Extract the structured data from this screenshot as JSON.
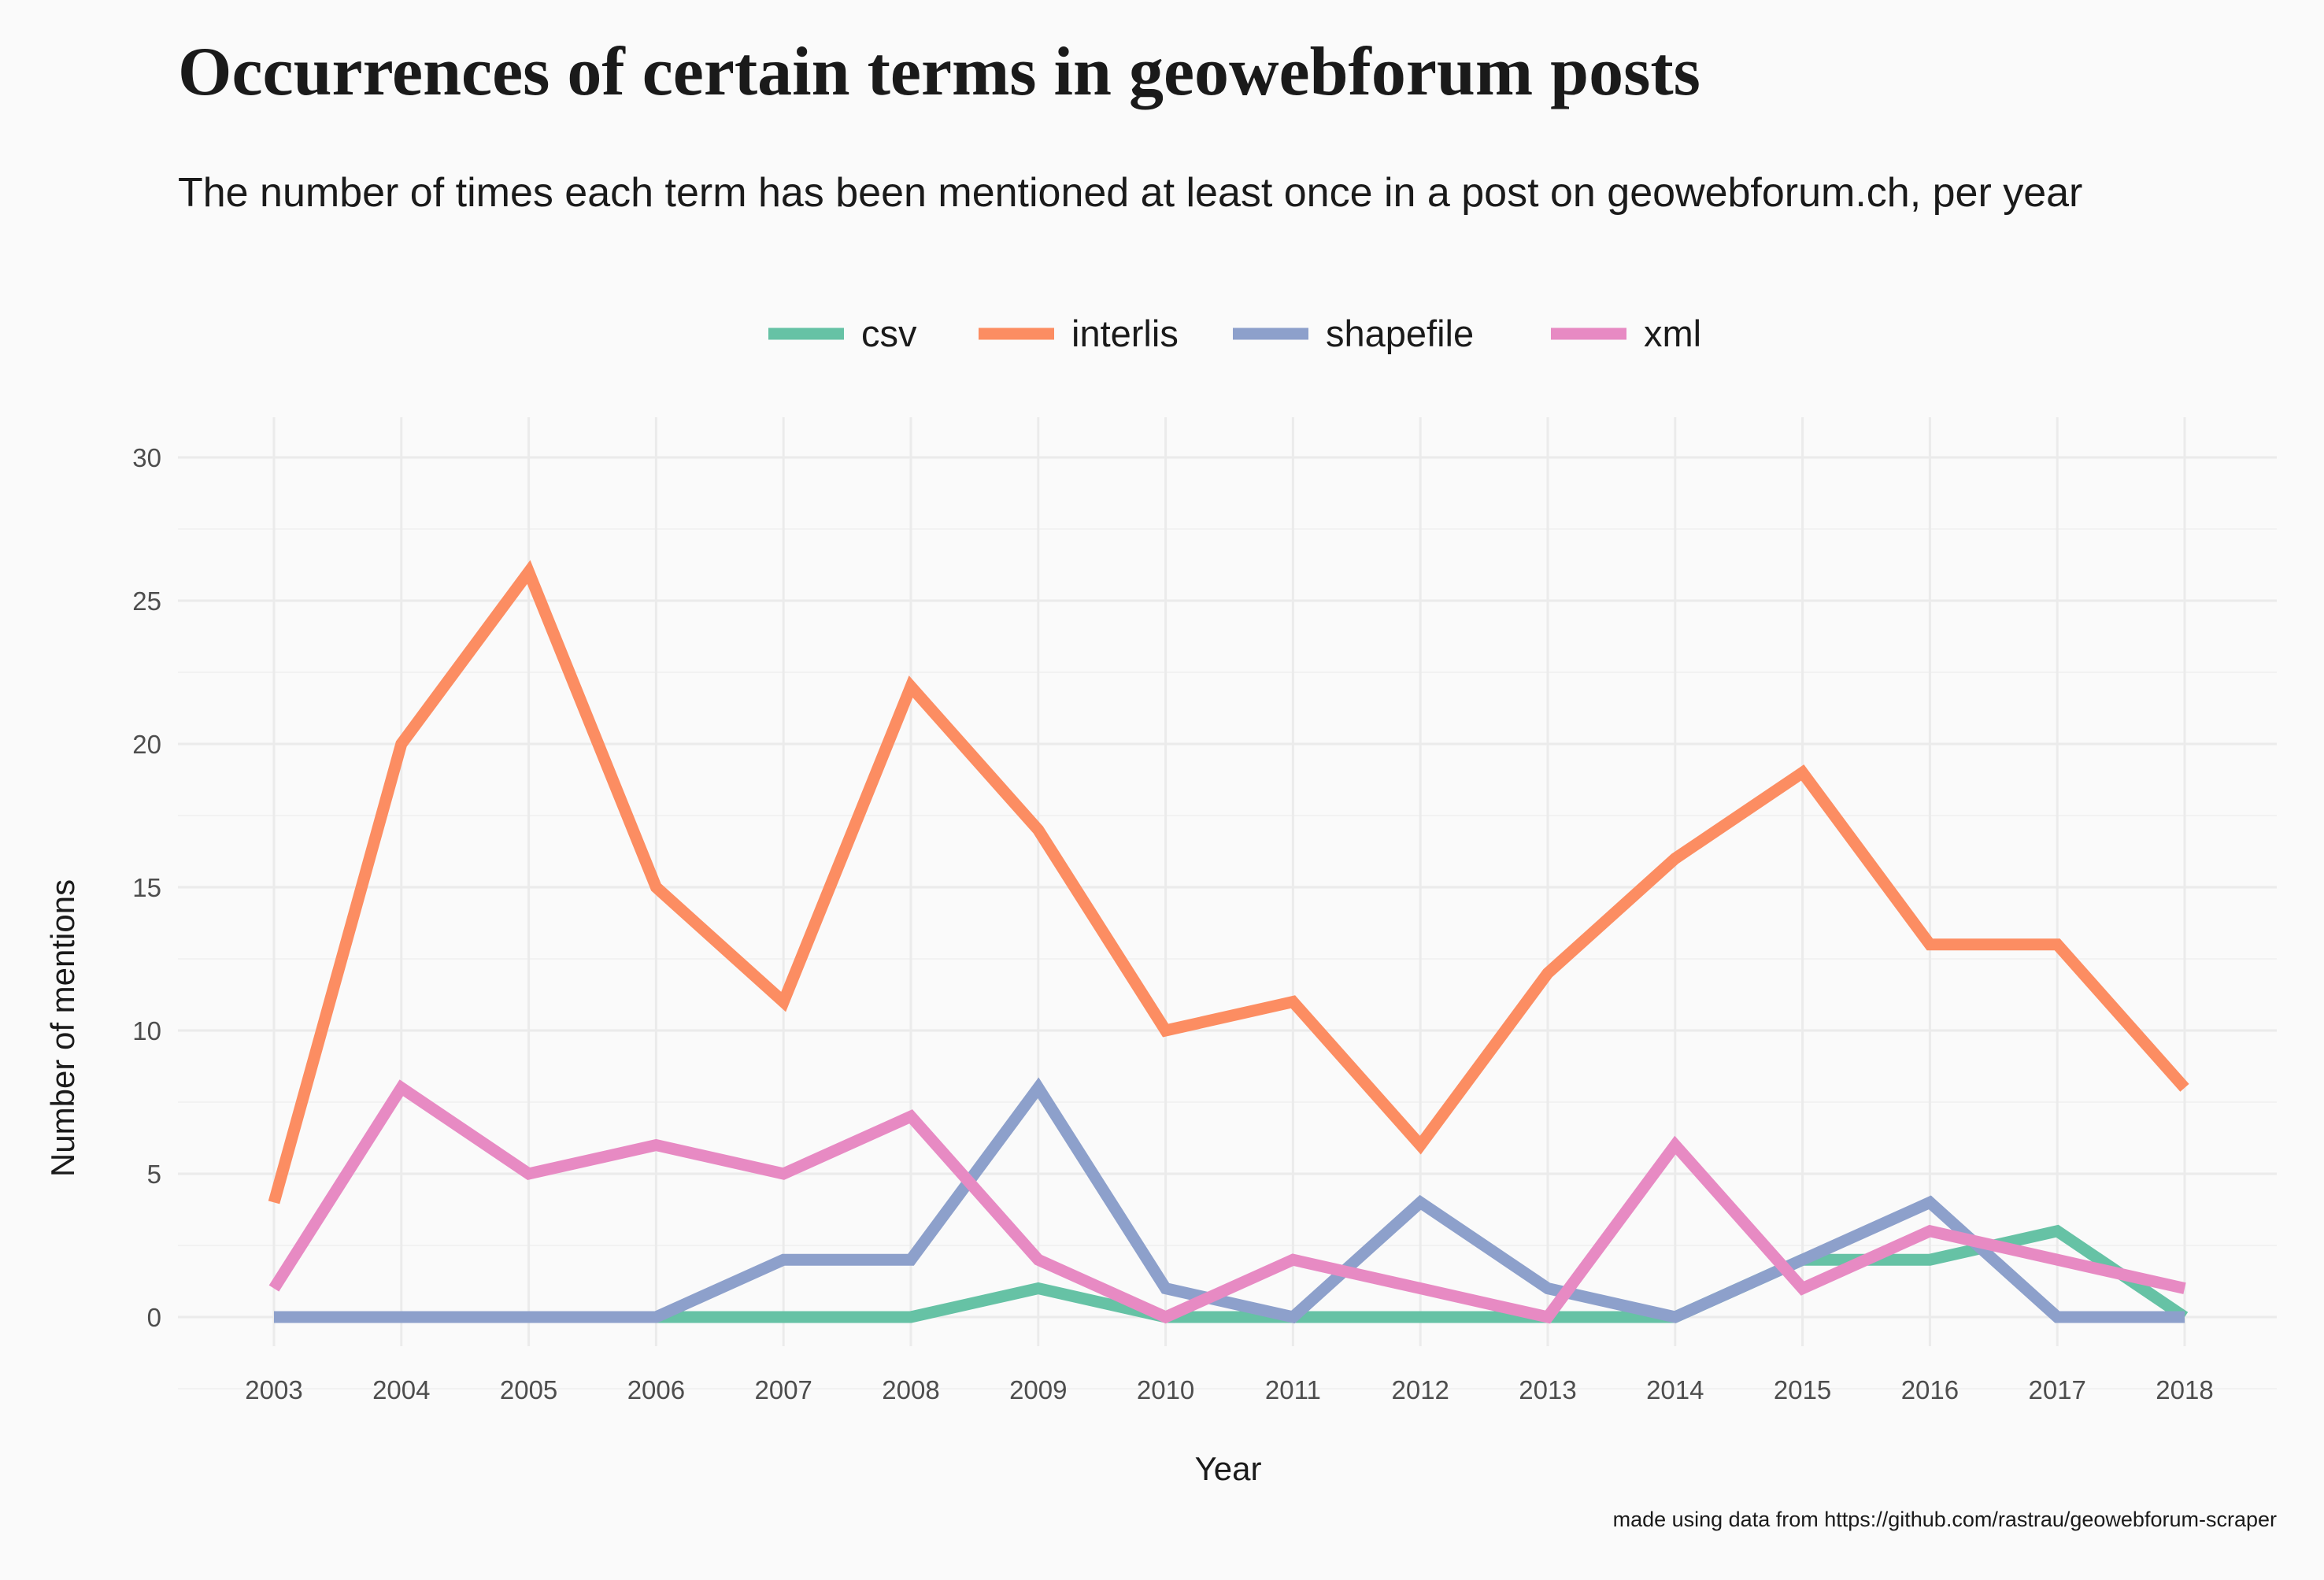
{
  "chart_data": {
    "type": "line",
    "title": "Occurrences of certain terms in geowebforum posts",
    "subtitle": "The number of times each term has been mentioned at least once in a post on geowebforum.ch, per year",
    "xlabel": "Year",
    "ylabel": "Number of mentions",
    "caption": "made using data from https://github.com/rastrau/geowebforum-scraper",
    "x": [
      2003,
      2004,
      2005,
      2006,
      2007,
      2008,
      2009,
      2010,
      2011,
      2012,
      2013,
      2014,
      2015,
      2016,
      2017,
      2018
    ],
    "x_tick_labels": [
      "2003",
      "2004",
      "2005",
      "2006",
      "2007",
      "2008",
      "2009",
      "2010",
      "2011",
      "2012",
      "2013",
      "2014",
      "2015",
      "2016",
      "2017",
      "2018"
    ],
    "ylim": [
      0,
      30
    ],
    "y_ticks": [
      0,
      5,
      10,
      15,
      20,
      25,
      30
    ],
    "y_tick_labels": [
      "0",
      "5",
      "10",
      "15",
      "20",
      "25",
      "30"
    ],
    "grid": true,
    "legend_position": "top",
    "series": [
      {
        "name": "csv",
        "color": "#66c2a5",
        "values": [
          0,
          0,
          0,
          0,
          0,
          0,
          1,
          0,
          0,
          0,
          0,
          0,
          2,
          2,
          3,
          0
        ]
      },
      {
        "name": "interlis",
        "color": "#fc8d62",
        "values": [
          4,
          20,
          26,
          15,
          11,
          22,
          17,
          10,
          11,
          6,
          12,
          16,
          19,
          13,
          13,
          8
        ]
      },
      {
        "name": "shapefile",
        "color": "#8da0cb",
        "values": [
          0,
          0,
          0,
          0,
          2,
          2,
          8,
          1,
          0,
          4,
          1,
          0,
          2,
          4,
          0,
          0
        ]
      },
      {
        "name": "xml",
        "color": "#e78ac3",
        "values": [
          1,
          8,
          5,
          6,
          5,
          7,
          2,
          0,
          2,
          1,
          0,
          6,
          1,
          3,
          2,
          1
        ]
      }
    ]
  }
}
